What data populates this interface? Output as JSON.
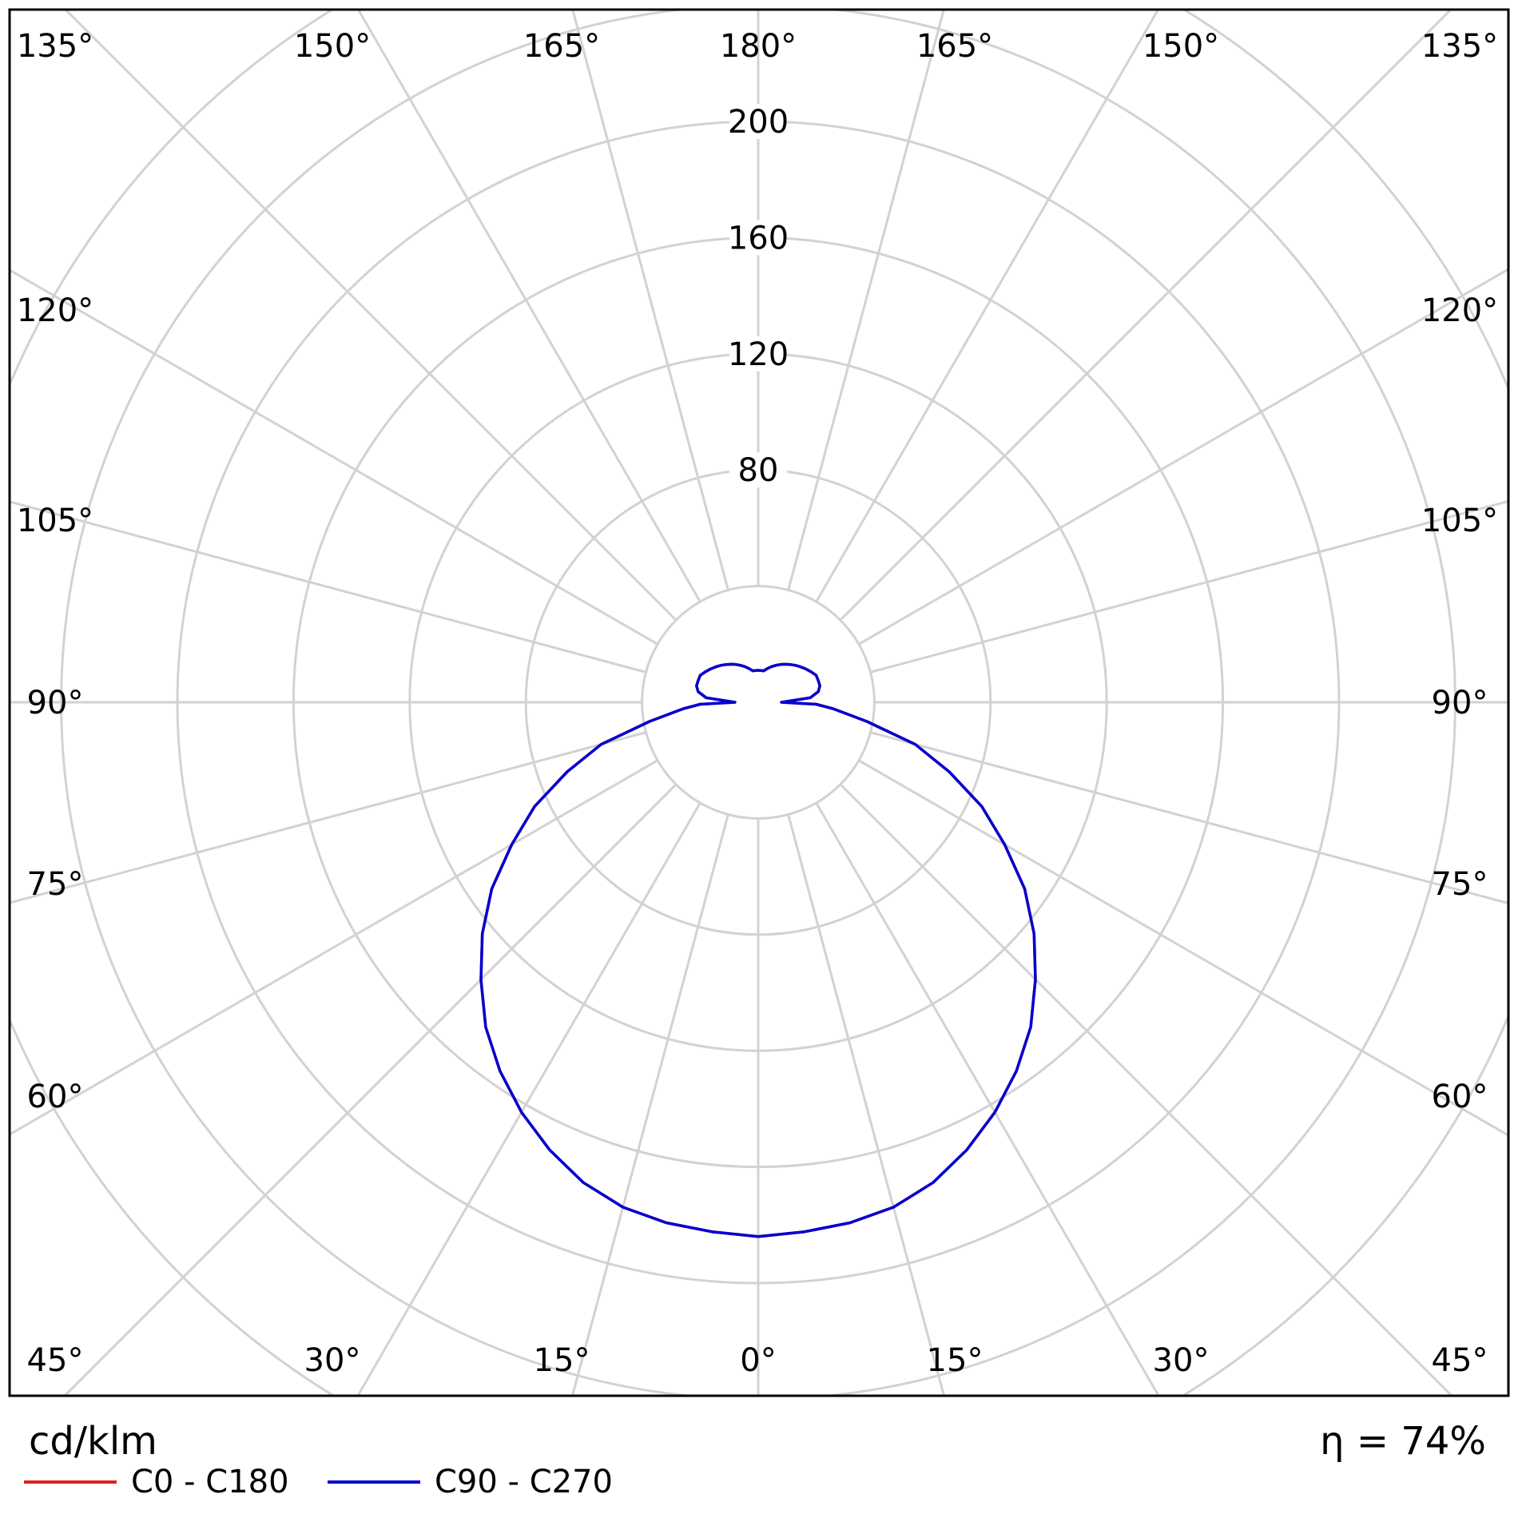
{
  "chart_data": {
    "type": "polar",
    "title": "",
    "unit_label": "cd/klm",
    "efficiency_label": "η = 74%",
    "radial_ticks": [
      40,
      80,
      120,
      160,
      200,
      240,
      280
    ],
    "radial_tick_labels": [
      "80",
      "120",
      "160",
      "200"
    ],
    "angle_labels": {
      "top": [
        "135°",
        "150°",
        "165°",
        "180°",
        "165°",
        "150°",
        "135°"
      ],
      "bottom": [
        "45°",
        "30°",
        "15°",
        "0°",
        "15°",
        "30°",
        "45°"
      ],
      "left": [
        "120°",
        "105°",
        "90°",
        "75°",
        "60°"
      ],
      "right": [
        "120°",
        "105°",
        "90°",
        "75°",
        "60°"
      ]
    },
    "angle_step_deg": 15,
    "grid": true,
    "legend_position": "bottom-left",
    "series": [
      {
        "name": "C0 - C180",
        "color": "#e02020",
        "gamma": [
          0,
          5,
          10,
          15,
          20,
          25,
          30,
          35,
          40,
          45,
          50,
          55,
          60,
          65,
          70,
          75,
          80,
          85,
          88,
          90,
          95,
          100,
          105,
          110,
          115,
          120,
          125,
          130,
          135,
          140,
          145,
          150,
          155,
          160,
          165,
          170,
          175,
          180
        ],
        "values": [
          184,
          183,
          182,
          180,
          176,
          170,
          163,
          155,
          146,
          135,
          124,
          112,
          98,
          85,
          70,
          56,
          38,
          26,
          20,
          8,
          18,
          21,
          22,
          22,
          22,
          21,
          20,
          19,
          18,
          17,
          16,
          15,
          14,
          13,
          12,
          11,
          11,
          11
        ]
      },
      {
        "name": "C90 - C270",
        "color": "#0000d0",
        "gamma": [
          0,
          5,
          10,
          15,
          20,
          25,
          30,
          35,
          40,
          45,
          50,
          55,
          60,
          65,
          70,
          75,
          80,
          85,
          88,
          90,
          95,
          100,
          105,
          110,
          115,
          120,
          125,
          130,
          135,
          140,
          145,
          150,
          155,
          160,
          165,
          170,
          175,
          180
        ],
        "values": [
          184,
          183,
          182,
          180,
          176,
          170,
          163,
          155,
          146,
          135,
          124,
          112,
          98,
          85,
          70,
          56,
          38,
          26,
          20,
          8,
          18,
          21,
          22,
          22,
          22,
          21,
          20,
          19,
          18,
          17,
          16,
          15,
          14,
          13,
          12,
          11,
          11,
          11
        ]
      }
    ]
  }
}
